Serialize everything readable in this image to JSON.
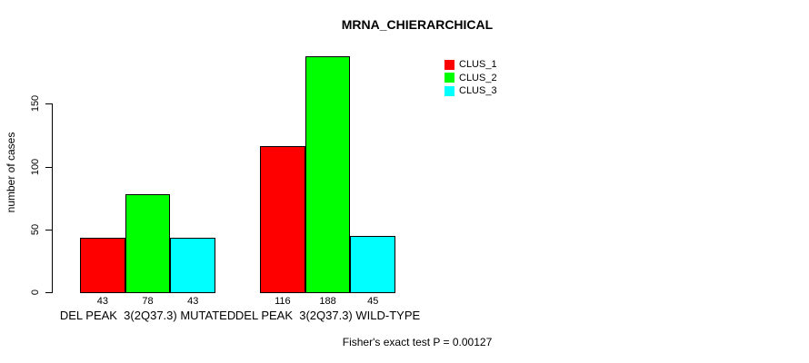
{
  "title": "MRNA_CHIERARCHICAL",
  "footer_note": "Fisher's exact test P = 0.00127",
  "chart_data": {
    "type": "bar",
    "title": "MRNA_CHIERARCHICAL",
    "categories": [
      "DEL PEAK  3(2Q37.3) MUTATED",
      "DEL PEAK  3(2Q37.3) WILD-TYPE"
    ],
    "series": [
      {
        "name": "CLUS_1",
        "color": "#ff0000",
        "values": [
          43,
          116
        ]
      },
      {
        "name": "CLUS_2",
        "color": "#00ff00",
        "values": [
          78,
          188
        ]
      },
      {
        "name": "CLUS_3",
        "color": "#00ffff",
        "values": [
          43,
          45
        ]
      }
    ],
    "xlabel": "",
    "ylabel": "number of cases",
    "yticks": [
      0,
      50,
      100,
      150
    ],
    "ylim": [
      0,
      190
    ],
    "grid": false,
    "legend_position": "top-right",
    "bar_border_color": "#000000",
    "value_labels_shown": true,
    "annotation": "Fisher's exact test P = 0.00127"
  }
}
